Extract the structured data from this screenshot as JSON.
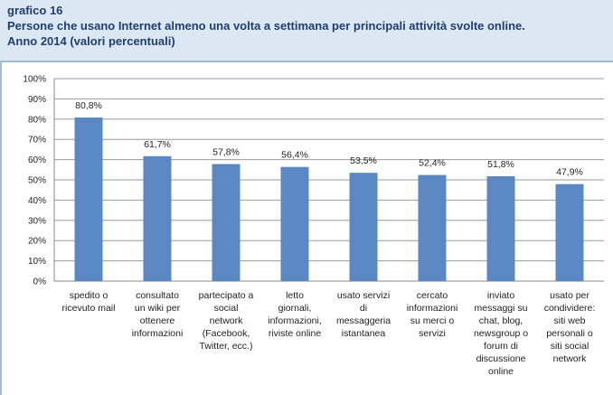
{
  "header": {
    "figure_label": "grafico 16",
    "title": "Persone che usano Internet almeno una volta a settimana per principali attività svolte online.",
    "subtitle": "Anno 2014 (valori percentuali)"
  },
  "colors": {
    "bar": "#5b87c3",
    "header_bg": "#dbe8f4",
    "title_text": "#1f3e6e"
  },
  "chart_data": {
    "type": "bar",
    "title": "Persone che usano Internet almeno una volta a settimana per principali attività svolte online.",
    "subtitle": "Anno 2014 (valori percentuali)",
    "xlabel": "",
    "ylabel": "",
    "ylim": [
      0,
      100
    ],
    "yticks": [
      "0%",
      "10%",
      "20%",
      "30%",
      "40%",
      "50%",
      "60%",
      "70%",
      "80%",
      "90%",
      "100%"
    ],
    "grid": true,
    "categories": [
      [
        "spedito o",
        "ricevuto mail"
      ],
      [
        "consultato",
        "un wiki per",
        "ottenere",
        "informazioni"
      ],
      [
        "partecipato a",
        "social",
        "network",
        "(Facebook,",
        "Twitter, ecc.)"
      ],
      [
        "letto",
        "giornali,",
        "informazioni,",
        "riviste online"
      ],
      [
        "usato servizi",
        "di",
        "messaggeria",
        "istantanea"
      ],
      [
        "cercato",
        "informazioni",
        "su merci o",
        "servizi"
      ],
      [
        "inviato",
        "messaggi su",
        "chat, blog,",
        "newsgroup o",
        "forum di",
        "discussione",
        "online"
      ],
      [
        "usato per",
        "condividere:",
        "siti web",
        "personali o",
        "siti social",
        "network"
      ]
    ],
    "values": [
      80.8,
      61.7,
      57.8,
      56.4,
      53.5,
      52.4,
      51.8,
      47.9
    ],
    "value_labels": [
      "80,8%",
      "61,7%",
      "57,8%",
      "56,4%",
      "53,5%",
      "52,4%",
      "51,8%",
      "47,9%"
    ]
  }
}
